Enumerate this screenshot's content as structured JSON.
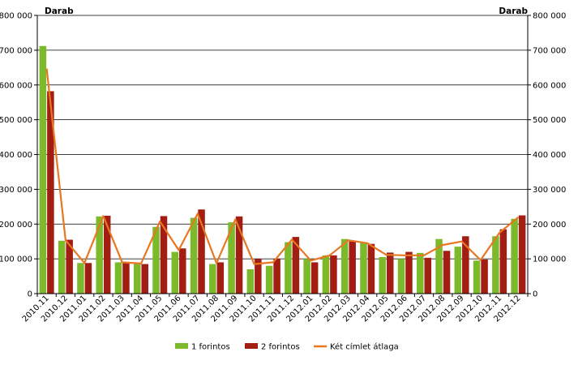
{
  "chart_data": {
    "type": "bar",
    "ylabel_left": "Darab",
    "ylabel_right": "Darab",
    "ylim": [
      0,
      800000
    ],
    "yticks": [
      0,
      100000,
      200000,
      300000,
      400000,
      500000,
      600000,
      700000,
      800000
    ],
    "ytick_labels": [
      "0",
      "100 000",
      "200 000",
      "300 000",
      "400 000",
      "500 000",
      "600 000",
      "700 000",
      "800 000"
    ],
    "grid": true,
    "legend_position": "bottom",
    "categories": [
      "2010.11",
      "2010.12",
      "2011.01",
      "2011.02",
      "2011.03",
      "2011.04",
      "2011.05",
      "2011.06",
      "2011.07",
      "2011.08",
      "2011.09",
      "2011.10",
      "2011.11",
      "2011.12",
      "2012.01",
      "2012.02",
      "2012.03",
      "2012.04",
      "2012.05",
      "2012.06",
      "2012.07",
      "2012.08",
      "2012.09",
      "2012.10",
      "2012.11",
      "2012.12"
    ],
    "series": [
      {
        "name": "1 forintos",
        "type": "bar",
        "color": "#7CBA2C",
        "values": [
          712000,
          152000,
          88000,
          222000,
          90000,
          88000,
          192000,
          120000,
          218000,
          85000,
          205000,
          70000,
          80000,
          148000,
          100000,
          110000,
          157000,
          147000,
          105000,
          100000,
          117000,
          157000,
          135000,
          95000,
          165000,
          215000
        ]
      },
      {
        "name": "2 forintos",
        "type": "bar",
        "color": "#A21D12",
        "values": [
          582000,
          155000,
          88000,
          224000,
          90000,
          85000,
          223000,
          130000,
          242000,
          90000,
          222000,
          100000,
          100000,
          163000,
          90000,
          110000,
          150000,
          143000,
          118000,
          120000,
          103000,
          123000,
          165000,
          98000,
          185000,
          225000
        ]
      },
      {
        "name": "Két címlet átlaga",
        "type": "line",
        "color": "#E87722",
        "values": [
          647000,
          153500,
          88000,
          223000,
          90000,
          86500,
          207500,
          125000,
          230000,
          87500,
          213500,
          85000,
          90000,
          155500,
          95000,
          110000,
          153500,
          145000,
          111500,
          110000,
          110000,
          140000,
          150000,
          96500,
          175000,
          220000
        ]
      }
    ]
  }
}
